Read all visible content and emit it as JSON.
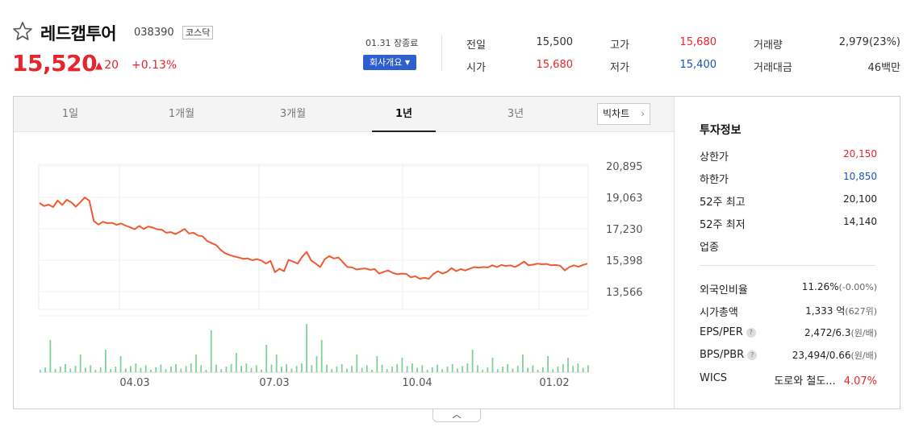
{
  "stock": {
    "name": "레드캡투어",
    "code": "038390",
    "market": "코스닥",
    "price": "15,520",
    "change": "20",
    "change_pct": "+0.13%",
    "date_label": "01.31 장종료",
    "company_button": "회사개요"
  },
  "quote": {
    "prev_close_label": "전일",
    "prev_close": "15,500",
    "high_label": "고가",
    "high": "15,680",
    "volume_label": "거래량",
    "volume": "2,979(23%)",
    "open_label": "시가",
    "open": "15,680",
    "low_label": "저가",
    "low": "15,400",
    "amount_label": "거래대금",
    "amount": "46백만"
  },
  "tabs": [
    "1일",
    "1개월",
    "3개월",
    "1년",
    "3년"
  ],
  "active_tab": "1년",
  "big_chart_button": "빅차트",
  "chart_data": {
    "type": "line",
    "title": "",
    "y_ticks": [
      "20,895",
      "19,063",
      "17,230",
      "15,398",
      "13,566"
    ],
    "ylim": [
      13566,
      20895
    ],
    "x_ticks": [
      "04.03",
      "07.03",
      "10.04",
      "01.02"
    ],
    "price_series": [
      18740,
      18560,
      18640,
      18500,
      18880,
      18620,
      18920,
      18780,
      18520,
      18780,
      19060,
      18870,
      17680,
      17480,
      17640,
      17560,
      17580,
      17460,
      17540,
      17420,
      17320,
      17200,
      17400,
      17220,
      17360,
      17300,
      17200,
      17180,
      17000,
      17040,
      16920,
      17060,
      17220,
      16960,
      17000,
      16840,
      16800,
      16520,
      16400,
      16280,
      16000,
      15800,
      15700,
      15620,
      15560,
      15480,
      15500,
      15400,
      15460,
      15380,
      15200,
      15360,
      14700,
      14900,
      14760,
      15420,
      15320,
      15200,
      15600,
      15880,
      15380,
      15200,
      15000,
      15460,
      15640,
      15500,
      15560,
      15280,
      15000,
      14980,
      14860,
      14900,
      14920,
      14840,
      14880,
      14620,
      14720,
      14800,
      14660,
      14580,
      14620,
      14600,
      14400,
      14460,
      14320,
      14380,
      14320,
      14600,
      14760,
      14620,
      14720,
      14940,
      14760,
      14880,
      14800,
      14900,
      15000,
      14960,
      15000,
      14980,
      15100,
      15000,
      15120,
      15060,
      15100,
      15000,
      15140,
      15320,
      15100,
      15140,
      15200,
      15160,
      15180,
      15100,
      15120,
      15080,
      14800,
      15000,
      15100,
      15020,
      15120,
      15200
    ]
  },
  "info": {
    "title": "투자정보",
    "upper_limit_label": "상한가",
    "upper_limit": "20,150",
    "lower_limit_label": "하한가",
    "lower_limit": "10,850",
    "high52_label": "52주 최고",
    "high52": "20,100",
    "low52_label": "52주 최저",
    "low52": "14,140",
    "industry_label": "업종",
    "foreign_label": "외국인비율",
    "foreign": "11.26%",
    "foreign_chg": "(-0.00%)",
    "mktcap_label": "시가총액",
    "mktcap": "1,333 억",
    "mktcap_rank": "(627위)",
    "eps_label": "EPS/PER",
    "eps": "2,472/6.3",
    "eps_unit": "(원/배)",
    "bps_label": "BPS/PBR",
    "bps": "23,494/0.66",
    "bps_unit": "(원/배)",
    "wics_label": "WICS",
    "wics": "도로와 철도...",
    "wics_pct": "4.07%"
  },
  "colors": {
    "up": "#e5262c",
    "down": "#1a52b9",
    "line": "#f05a32",
    "volume": "#7fd19a",
    "corp_btn": "#2e5fcf"
  }
}
